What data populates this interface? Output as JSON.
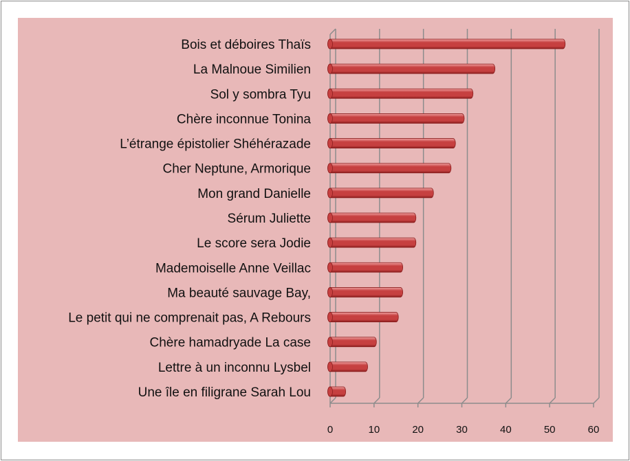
{
  "chart_data": {
    "type": "bar",
    "orientation": "horizontal",
    "categories": [
      "Bois et déboires Thaïs",
      "La Malnoue Similien",
      "Sol y sombra Tyu",
      "Chère inconnue Tonina",
      "L’étrange épistolier Shéhérazade",
      "Cher Neptune,  Armorique",
      "Mon grand Danielle",
      "Sérum Juliette",
      "Le score sera Jodie",
      "Mademoiselle Anne Veillac",
      "Ma beauté sauvage Bay,",
      "Le petit qui ne comprenait pas, A Rebours",
      "Chère hamadryade La case",
      "Lettre à un inconnu Lysbel",
      "Une île en filigrane Sarah Lou"
    ],
    "values": [
      53,
      37,
      32,
      30,
      28,
      27,
      23,
      19,
      19,
      16,
      16,
      15,
      10,
      8,
      3
    ],
    "x_ticks": [
      "0",
      "10",
      "20",
      "30",
      "40",
      "50",
      "60"
    ],
    "xlim": [
      0,
      60
    ],
    "grid": true,
    "legend": "none",
    "style": "3d-cylinder",
    "colors": {
      "plot_background": "#e8b8b8",
      "bar": "#c64040",
      "bar_highlight": "#f0a0a0",
      "bar_shadow": "#8a1e1e",
      "gridline": "#8c8c8c"
    }
  }
}
